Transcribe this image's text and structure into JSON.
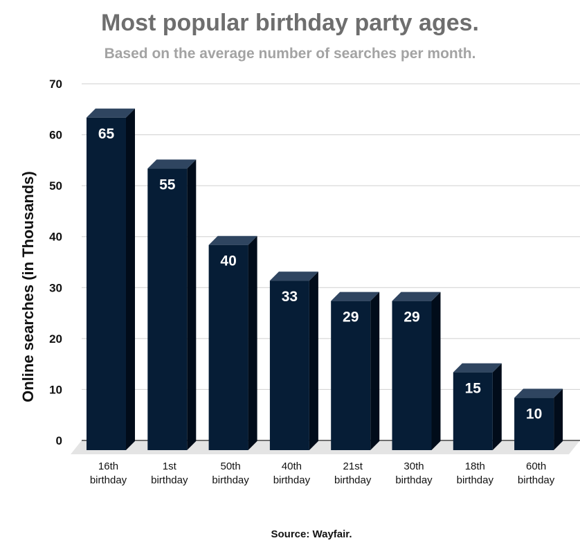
{
  "chart_data": {
    "type": "bar",
    "title": "Most popular birthday party ages.",
    "subtitle": "Based on the average number of searches per month.",
    "ylabel": "Online searches (in Thousands)",
    "xlabel": "",
    "categories": [
      [
        "16th",
        "birthday"
      ],
      [
        "1st",
        "birthday"
      ],
      [
        "50th",
        "birthday"
      ],
      [
        "40th",
        "birthday"
      ],
      [
        "21st",
        "birthday"
      ],
      [
        "30th",
        "birthday"
      ],
      [
        "18th",
        "birthday"
      ],
      [
        "60th",
        "birthday"
      ]
    ],
    "values": [
      65,
      55,
      40,
      33,
      29,
      29,
      15,
      10
    ],
    "value_labels": [
      "65",
      "55",
      "40",
      "33",
      "29",
      "29",
      "15",
      "10"
    ],
    "ylim": [
      0,
      70
    ],
    "yticks": [
      0,
      10,
      20,
      30,
      40,
      50,
      60,
      70
    ],
    "grid": true,
    "legend": "none",
    "style": "3d",
    "colors": {
      "bar_front": "#061d36",
      "bar_top": "#2f4560",
      "bar_side": "#010c1a",
      "value_label": "#ffffff",
      "grid": "#cfcfcf",
      "floor": "#e4e4e4"
    }
  },
  "source": "Source: Wayfair."
}
